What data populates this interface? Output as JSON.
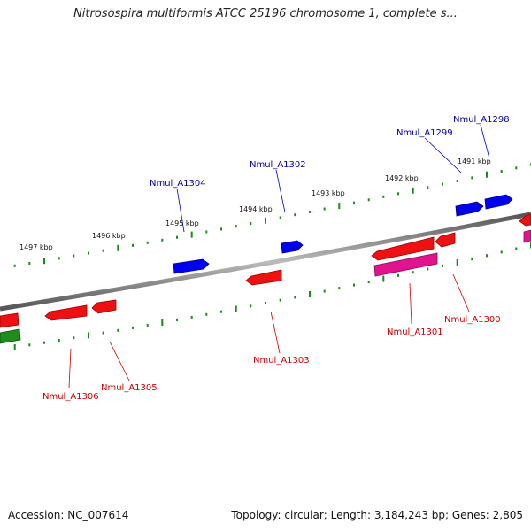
{
  "title": "Nitrosospira multiformis ATCC 25196 chromosome 1, complete s...",
  "footer": {
    "accession": "Accession: NC_007614",
    "info": "Topology: circular; Length: 3,184,243 bp; Genes: 2,805"
  },
  "colors": {
    "backbone": "#808080",
    "tick": "#1a8a1a",
    "forward_gene": "#0000ee",
    "reverse_gene": "#ee1111",
    "rna_gene": "#e0148c",
    "other_gene": "#1e8c1e",
    "forward_label": "#0000aa",
    "reverse_label": "#cc0000"
  },
  "scale": {
    "unit": "kbp",
    "ticks": [
      {
        "label": "1497 kbp"
      },
      {
        "label": "1496 kbp"
      },
      {
        "label": "1495 kbp"
      },
      {
        "label": "1494 kbp"
      },
      {
        "label": "1493 kbp"
      },
      {
        "label": "1492 kbp"
      },
      {
        "label": "1491 kbp"
      }
    ]
  },
  "genes": {
    "forward_strand": [
      {
        "label": "Nmul_A1304"
      },
      {
        "label": "Nmul_A1302"
      },
      {
        "label": "Nmul_A1299"
      },
      {
        "label": "Nmul_A1298"
      }
    ],
    "reverse_strand": [
      {
        "label": "Nmul_A1306"
      },
      {
        "label": "Nmul_A1305"
      },
      {
        "label": "Nmul_A1303"
      },
      {
        "label": "Nmul_A1301"
      },
      {
        "label": "Nmul_A1300"
      }
    ]
  }
}
